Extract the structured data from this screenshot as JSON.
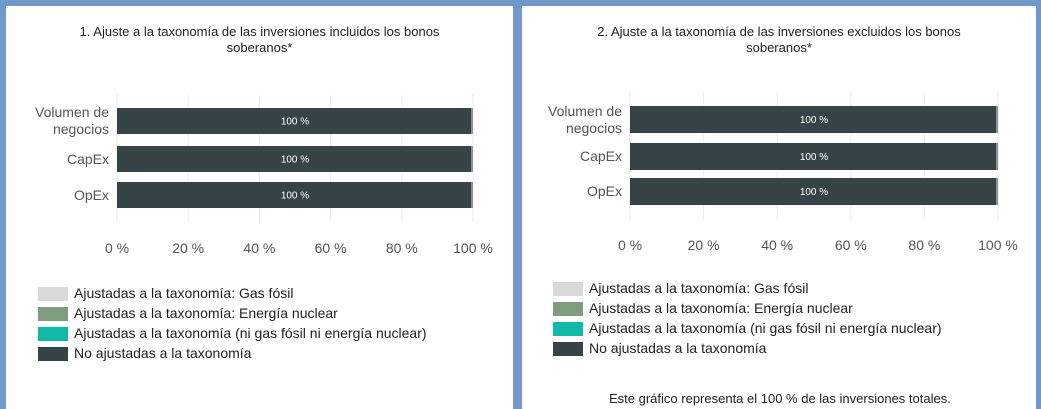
{
  "chart_data": [
    {
      "type": "bar",
      "orientation": "horizontal",
      "stacked": true,
      "title": "1. Ajuste a la taxonomía de las inversiones incluidos los bonos soberanos*",
      "categories": [
        "Volumen de negocios",
        "CapEx",
        "OpEx"
      ],
      "series": [
        {
          "name": "Ajustadas a la taxonomía: Gas fósil",
          "color": "#d9d9d9",
          "values": [
            0,
            0,
            0
          ]
        },
        {
          "name": "Ajustadas a la taxonomía: Energía nuclear",
          "color": "#7f9c7e",
          "values": [
            0,
            0,
            0
          ]
        },
        {
          "name": "Ajustadas a la taxonomía (ni gas fósil ni energía nuclear)",
          "color": "#10b9a8",
          "values": [
            0,
            0,
            0
          ]
        },
        {
          "name": "No ajustadas a la taxonomía",
          "color": "#364447",
          "values": [
            100,
            100,
            100
          ],
          "value_labels": [
            "100 %",
            "100 %",
            "100 %"
          ]
        }
      ],
      "xlim": [
        0,
        100
      ],
      "xticks": [
        {
          "value": 0,
          "label": "0 %"
        },
        {
          "value": 20,
          "label": "20 %"
        },
        {
          "value": 40,
          "label": "40 %"
        },
        {
          "value": 60,
          "label": "60 %"
        },
        {
          "value": 80,
          "label": "80 %"
        },
        {
          "value": 100,
          "label": "100 %"
        }
      ],
      "grid": true
    },
    {
      "type": "bar",
      "orientation": "horizontal",
      "stacked": true,
      "title": "2. Ajuste a la taxonomía de las inversiones excluidos los bonos soberanos*",
      "categories": [
        "Volumen de negocios",
        "CapEx",
        "OpEx"
      ],
      "series": [
        {
          "name": "Ajustadas a la taxonomía: Gas fósil",
          "color": "#d9d9d9",
          "values": [
            0,
            0,
            0
          ]
        },
        {
          "name": "Ajustadas a la taxonomía: Energía nuclear",
          "color": "#7f9c7e",
          "values": [
            0,
            0,
            0
          ]
        },
        {
          "name": "Ajustadas a la taxonomía (ni gas fósil ni energía nuclear)",
          "color": "#10b9a8",
          "values": [
            0,
            0,
            0
          ]
        },
        {
          "name": "No ajustadas a la taxonomía",
          "color": "#364447",
          "values": [
            100,
            100,
            100
          ],
          "value_labels": [
            "100 %",
            "100 %",
            "100 %"
          ]
        }
      ],
      "xlim": [
        0,
        100
      ],
      "xticks": [
        {
          "value": 0,
          "label": "0 %"
        },
        {
          "value": 20,
          "label": "20 %"
        },
        {
          "value": 40,
          "label": "40 %"
        },
        {
          "value": 60,
          "label": "60 %"
        },
        {
          "value": 80,
          "label": "80 %"
        },
        {
          "value": 100,
          "label": "100 %"
        }
      ],
      "grid": true,
      "annotation": "Este gráfico representa el 100 % de las inversiones totales."
    }
  ]
}
